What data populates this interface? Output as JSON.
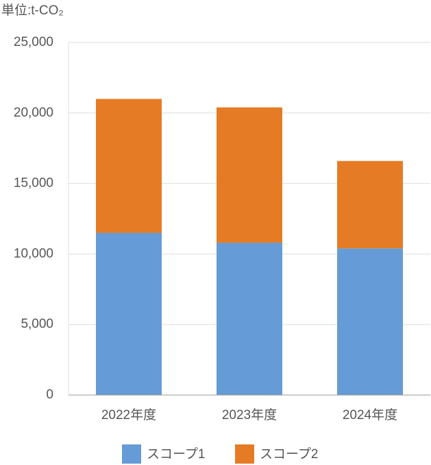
{
  "chart_data": {
    "type": "bar",
    "stacked": true,
    "title": "単位:t-CO₂",
    "categories": [
      "2022年度",
      "2023年度",
      "2024年度"
    ],
    "series": [
      {
        "name": "スコープ1",
        "color": "#659bd6",
        "values": [
          11500,
          10800,
          10400
        ]
      },
      {
        "name": "スコープ2",
        "color": "#e57c25",
        "values": [
          9500,
          9600,
          6200
        ]
      }
    ],
    "ylim": [
      0,
      25000
    ],
    "yticks": [
      0,
      {
        "value": 5000,
        "label": "5,000"
      },
      {
        "value": 10000,
        "label": "10,000"
      },
      {
        "value": 15000,
        "label": "15,000"
      },
      {
        "value": 20000,
        "label": "20,000"
      },
      {
        "value": 25000,
        "label": "25,000"
      }
    ],
    "grid": true,
    "legend": "bottom"
  }
}
